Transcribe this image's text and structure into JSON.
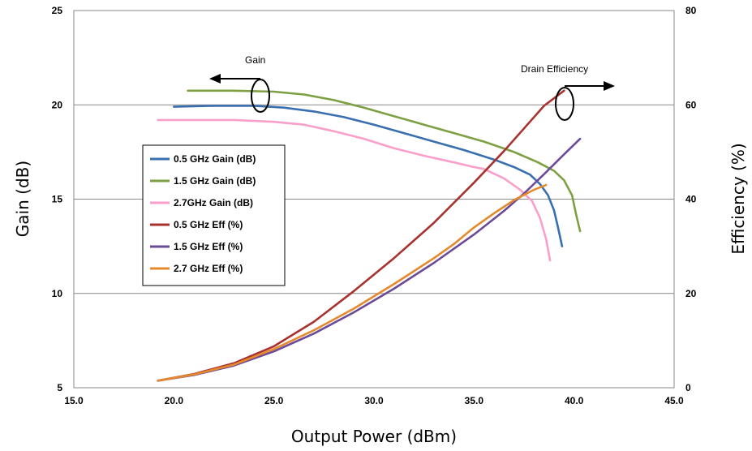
{
  "chart_data": {
    "type": "line",
    "xlabel": "Output Power (dBm)",
    "ylabel": "Gain (dB)",
    "y2label": "Efficiency (%)",
    "xlim": [
      15,
      45
    ],
    "ylim": [
      5,
      25
    ],
    "y2lim": [
      0,
      80
    ],
    "xticks": [
      "15.0",
      "20.0",
      "25.0",
      "30.0",
      "35.0",
      "40.0",
      "45.0"
    ],
    "yticks": [
      "5",
      "10",
      "15",
      "20",
      "25"
    ],
    "y2ticks": [
      "0",
      "20",
      "40",
      "60",
      "80"
    ],
    "grid": true,
    "legend_position": "left",
    "annotations": {
      "gain": "Gain",
      "efficiency": "Drain Efficiency"
    },
    "series": [
      {
        "name": "0.5 GHz Gain (dB)",
        "axis": "left",
        "color": "#3A6FAF",
        "x": [
          20.0,
          22.0,
          24.0,
          25.5,
          27.0,
          28.5,
          30.0,
          31.5,
          33.0,
          34.5,
          36.0,
          37.0,
          37.8,
          38.3,
          38.7,
          39.0,
          39.2,
          39.4
        ],
        "y": [
          19.9,
          19.95,
          19.95,
          19.85,
          19.65,
          19.35,
          18.95,
          18.5,
          18.05,
          17.6,
          17.1,
          16.7,
          16.3,
          15.8,
          15.2,
          14.4,
          13.5,
          12.5
        ]
      },
      {
        "name": "1.5 GHz Gain (dB)",
        "axis": "left",
        "color": "#7DA043",
        "x": [
          20.7,
          23.0,
          25.0,
          26.5,
          28.0,
          29.5,
          31.0,
          32.5,
          34.0,
          35.5,
          37.0,
          38.2,
          39.0,
          39.5,
          39.9,
          40.1,
          40.3
        ],
        "y": [
          20.75,
          20.75,
          20.7,
          20.55,
          20.25,
          19.85,
          19.4,
          18.95,
          18.5,
          18.05,
          17.5,
          16.95,
          16.5,
          16.0,
          15.2,
          14.2,
          13.3
        ]
      },
      {
        "name": "2.7GHz Gain (dB)",
        "axis": "left",
        "color": "#F99FC9",
        "x": [
          19.2,
          21.0,
          23.0,
          25.0,
          26.5,
          28.0,
          29.5,
          31.0,
          32.5,
          34.0,
          35.0,
          35.5,
          36.5,
          37.3,
          37.9,
          38.3,
          38.6,
          38.8
        ],
        "y": [
          19.2,
          19.2,
          19.2,
          19.1,
          18.95,
          18.6,
          18.2,
          17.7,
          17.3,
          16.95,
          16.7,
          16.6,
          16.1,
          15.5,
          14.9,
          14.0,
          12.9,
          11.75
        ]
      },
      {
        "name": "0.5 GHz Eff (%)",
        "axis": "right",
        "color": "#A8322F",
        "x": [
          19.2,
          21.0,
          23.0,
          25.0,
          27.0,
          29.0,
          31.0,
          33.0,
          35.0,
          36.5,
          37.5,
          38.5,
          39.5
        ],
        "y": [
          1.5,
          2.9,
          5.2,
          8.8,
          14.0,
          20.5,
          27.5,
          35.0,
          43.5,
          50.2,
          55.0,
          59.8,
          63.0
        ]
      },
      {
        "name": "1.5 GHz Eff (%)",
        "axis": "right",
        "color": "#6B4A9A",
        "x": [
          19.2,
          21.0,
          23.0,
          25.0,
          27.0,
          29.0,
          31.0,
          33.0,
          35.0,
          36.5,
          37.5,
          38.5,
          39.5,
          40.3
        ],
        "y": [
          1.5,
          2.7,
          4.7,
          7.7,
          11.5,
          16.0,
          21.0,
          26.5,
          32.5,
          37.5,
          41.2,
          45.3,
          49.5,
          52.8
        ]
      },
      {
        "name": "2.7 GHz Eff (%)",
        "axis": "right",
        "color": "#E58A2C",
        "x": [
          19.2,
          21.0,
          23.0,
          25.0,
          27.0,
          29.0,
          31.0,
          33.0,
          34.0,
          35.0,
          36.0,
          37.0,
          38.0,
          38.6
        ],
        "y": [
          1.5,
          2.8,
          4.9,
          8.2,
          12.2,
          16.8,
          22.0,
          27.5,
          30.5,
          34.0,
          37.0,
          39.8,
          42.0,
          43.0
        ]
      }
    ]
  }
}
